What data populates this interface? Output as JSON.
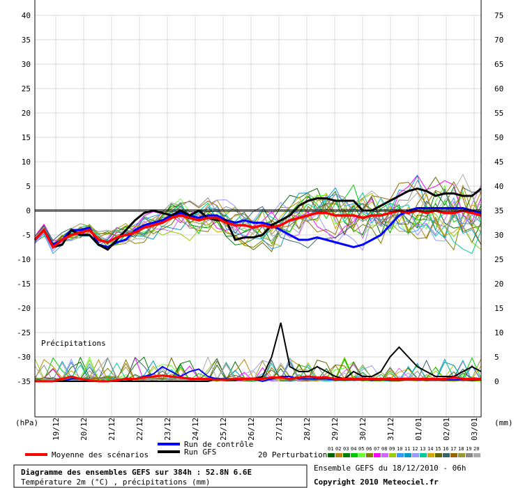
{
  "chart_data": {
    "type": "line",
    "title": "Diagramme des ensembles GEFS sur 384h : 52.8N 6.6E",
    "subtitle": "Température 2m (°C) , précipitations (mm)",
    "info": "Ensemble GEFS du 18/12/2010 - 06h",
    "copyright": "Copyright 2010 Meteociel.fr",
    "precip_label": "Précipitations",
    "left_unit": "(hPa)",
    "right_unit": "(mm)",
    "x_labels": [
      "19/12",
      "20/12",
      "21/12",
      "22/12",
      "23/12",
      "24/12",
      "25/12",
      "26/12",
      "27/12",
      "28/12",
      "29/12",
      "30/12",
      "31/12",
      "01/01",
      "02/01",
      "03/01"
    ],
    "x_range": [
      0,
      384
    ],
    "left_ticks": [
      40,
      35,
      30,
      25,
      20,
      15,
      10,
      5,
      0,
      -5,
      -10,
      -15,
      -20,
      -25,
      -30,
      -35
    ],
    "right_ticks": [
      75,
      70,
      65,
      60,
      55,
      50,
      45,
      40,
      35,
      30,
      25,
      20,
      15,
      10,
      5,
      0
    ],
    "temp_ylim": [
      -35,
      40
    ],
    "precip_ylim": [
      0,
      10
    ],
    "legend": {
      "mean": "Moyenne des scénarios",
      "control": "Run de contrôle",
      "gfs": "Run GFS",
      "perturbations": "20 Perturbations",
      "pert_numbers": [
        "01",
        "02",
        "03",
        "04",
        "05",
        "06",
        "07",
        "08",
        "09",
        "10",
        "11",
        "12",
        "13",
        "14",
        "15",
        "16",
        "17",
        "18",
        "19",
        "20"
      ]
    },
    "colors": {
      "mean": "#ff0000",
      "control": "#0000ff",
      "gfs": "#000000",
      "perturbations": [
        "#006400",
        "#b8860b",
        "#008000",
        "#00cc00",
        "#66ff33",
        "#808000",
        "#ff00ff",
        "#cc66ff",
        "#99cc00",
        "#3399ff",
        "#0099cc",
        "#9999ff",
        "#00cc99",
        "#ccaa00",
        "#666600",
        "#336666",
        "#996600",
        "#999933",
        "#888888",
        "#aaaaaa"
      ]
    },
    "series": [
      {
        "name": "Moyenne des scénarios",
        "temperature": [
          -6,
          -4,
          -7.5,
          -6,
          -5,
          -4.5,
          -4,
          -6,
          -6.5,
          -5.5,
          -5,
          -4.5,
          -3.5,
          -3,
          -2.5,
          -1.5,
          -1,
          -1.5,
          -2,
          -1.5,
          -1.5,
          -2.5,
          -3,
          -3,
          -3.5,
          -3,
          -3.5,
          -3,
          -2,
          -1.5,
          -1,
          -0.5,
          -0.5,
          -1,
          -1,
          -1,
          -1.5,
          -1,
          -1,
          -0.5,
          0,
          -0.5,
          0,
          -0.5,
          0,
          -0.5,
          -0.5,
          0,
          -0.5,
          -1
        ],
        "precip": [
          0,
          0,
          0,
          0.5,
          1,
          0.5,
          0.2,
          0,
          0,
          0.2,
          0.5,
          0.5,
          0.8,
          1,
          1.2,
          1,
          0.8,
          0.5,
          0.5,
          0.5,
          0.3,
          0.3,
          0.5,
          0.5,
          0.5,
          0.5,
          0.8,
          0.8,
          0.5,
          0.8,
          1,
          0.8,
          0.8,
          0.5,
          0.5,
          0.5,
          0.5,
          0.5,
          0.5,
          0.5,
          0.5,
          0.5,
          0.5,
          0.5,
          0.5,
          0.5,
          0.8,
          0.5,
          0.5,
          0.5
        ]
      },
      {
        "name": "Run de contrôle",
        "temperature": [
          -6,
          -4,
          -7,
          -6,
          -4,
          -4,
          -3.5,
          -7,
          -7.5,
          -6.5,
          -6,
          -4,
          -3,
          -2.5,
          -2,
          -1,
          -0.5,
          -1,
          -1.5,
          -1,
          -1,
          -2,
          -2.5,
          -2,
          -2.5,
          -2.5,
          -3,
          -4,
          -5,
          -6,
          -6,
          -5.5,
          -6,
          -6.5,
          -7,
          -7.5,
          -7,
          -6,
          -5,
          -3,
          -1,
          0,
          0.5,
          0.5,
          0.5,
          0.5,
          0.5,
          0.5,
          0,
          -0.5
        ],
        "precip": [
          0,
          0,
          0,
          0,
          0.5,
          0.5,
          0,
          0,
          0,
          0,
          0,
          0.5,
          1,
          1.5,
          3,
          2,
          1,
          2,
          2.5,
          1,
          0.5,
          0.5,
          0.5,
          0.5,
          0.5,
          0,
          0.5,
          1,
          1,
          0.5,
          0.5,
          0.5,
          0.5,
          0.3,
          0.3,
          0.3,
          0.3,
          0.3,
          0.3,
          0.3,
          0.3,
          0.3,
          0.3,
          0.3,
          0.3,
          0.3,
          0.3,
          0.3,
          0.3,
          0.3
        ]
      },
      {
        "name": "Run GFS",
        "temperature": [
          -6,
          -4,
          -7.5,
          -7,
          -4,
          -5,
          -5,
          -7,
          -8,
          -6,
          -4,
          -2,
          -0.5,
          0,
          -0.5,
          -1,
          0,
          -1,
          0,
          -1.5,
          -2,
          -2,
          -6,
          -5.5,
          -5.5,
          -5,
          -3,
          -2,
          -1,
          1,
          2,
          2.5,
          2.5,
          2,
          2,
          2,
          0,
          0,
          1,
          2,
          3,
          4,
          4.5,
          4,
          3,
          3.5,
          3.5,
          3,
          3,
          4.5
        ],
        "precip": [
          0,
          0,
          0,
          0,
          0,
          0,
          0,
          0,
          0,
          0,
          0,
          0,
          0,
          0,
          0,
          0,
          0,
          0,
          0,
          0,
          0.5,
          0.2,
          0.2,
          0.5,
          0.5,
          1,
          5,
          12,
          3,
          2,
          2,
          3,
          2,
          1,
          0.5,
          2,
          1,
          1,
          2,
          5,
          7,
          5,
          3,
          2,
          1,
          1,
          1,
          2,
          3,
          2
        ]
      }
    ]
  }
}
